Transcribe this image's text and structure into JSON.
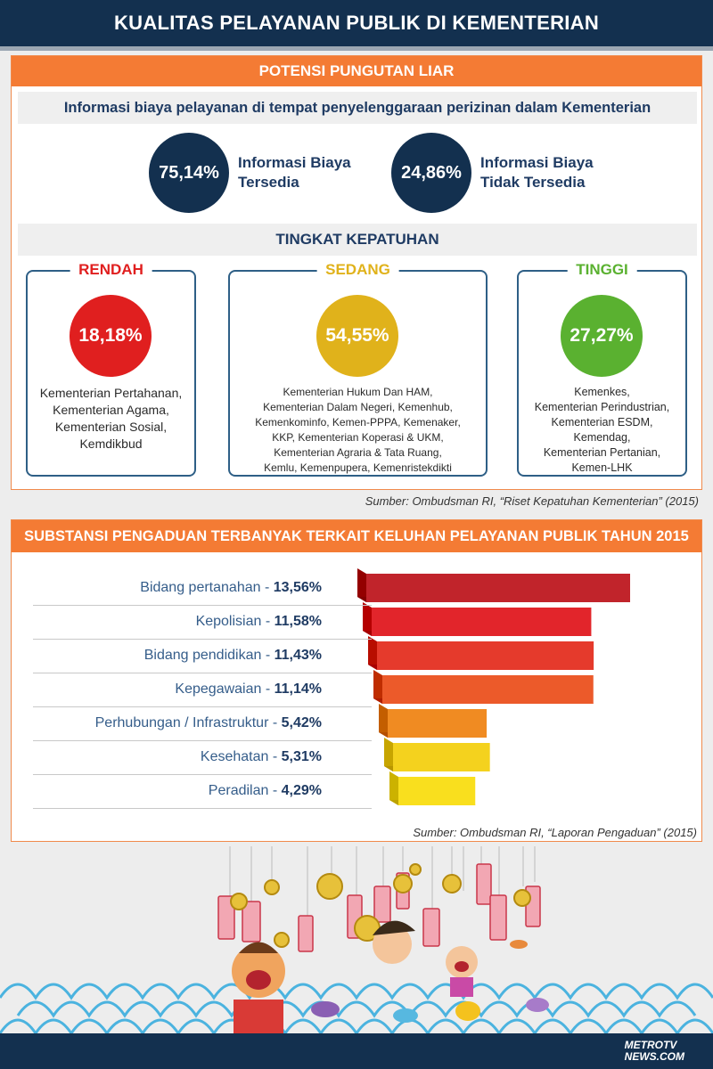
{
  "header": {
    "title": "KUALITAS PELAYANAN PUBLIK DI KEMENTERIAN"
  },
  "section1": {
    "title": "POTENSI PUNGUTAN LIAR",
    "info_heading": "Informasi biaya pelayanan di tempat penyelenggaraan perizinan dalam Kementerian",
    "stats": [
      {
        "value": "75,14%",
        "label_line1": "Informasi Biaya",
        "label_line2": "Tersedia"
      },
      {
        "value": "24,86%",
        "label_line1": "Informasi Biaya",
        "label_line2": "Tidak Tersedia"
      }
    ],
    "compliance_heading": "TINGKAT KEPATUHAN",
    "levels": [
      {
        "name": "RENDAH",
        "value": "18,18%",
        "color": "#e01f1f",
        "ministries": [
          "Kementerian Pertahanan,",
          "Kementerian Agama,",
          "Kementerian Sosial,",
          "Kemdikbud"
        ]
      },
      {
        "name": "SEDANG",
        "value": "54,55%",
        "color": "#e0b21b",
        "ministries": [
          "Kementerian Hukum Dan HAM,",
          "Kementerian Dalam Negeri, Kemenhub,",
          "Kemenkominfo, Kemen-PPPA, Kemenaker,",
          "KKP, Kementerian Koperasi & UKM,",
          "Kementerian Agraria & Tata Ruang,",
          "Kemlu, Kemenpupera, Kemenristekdikti"
        ]
      },
      {
        "name": "TINGGI",
        "value": "27,27%",
        "color": "#5ab130",
        "ministries": [
          "Kemenkes,",
          "Kementerian Perindustrian,",
          "Kementerian ESDM,",
          "Kemendag,",
          "Kementerian Pertanian,",
          "Kemen-LHK"
        ]
      }
    ],
    "source": "Sumber: Ombudsman RI, “Riset Kepatuhan Kementerian” (2015)"
  },
  "section2": {
    "title": "SUBSTANSI PENGADUAN TERBANYAK TERKAIT KELUHAN PELAYANAN PUBLIK TAHUN 2015",
    "source": "Sumber: Ombudsman RI, “Laporan Pengaduan” (2015)"
  },
  "chart_data": {
    "type": "bar",
    "orientation": "horizontal",
    "categories": [
      "Bidang pertanahan",
      "Kepolisian",
      "Bidang pendidikan",
      "Kepegawaian",
      "Perhubungan / Infrastruktur",
      "Kesehatan",
      "Peradilan"
    ],
    "values": [
      13.56,
      11.58,
      11.43,
      11.14,
      5.42,
      5.31,
      4.29
    ],
    "value_labels": [
      "13,56%",
      "11,58%",
      "11,43%",
      "11,14%",
      "5,42%",
      "5,31%",
      "4,29%"
    ],
    "bar_colors": [
      "#c1242b",
      "#e2252b",
      "#e53a2c",
      "#ec5a2a",
      "#f08b22",
      "#f4d21e",
      "#f9df1e"
    ],
    "title": "SUBSTANSI PENGADUAN TERBANYAK TERKAIT KELUHAN PELAYANAN PUBLIK TAHUN 2015",
    "xlabel": "",
    "ylabel": ""
  },
  "footer": {
    "logo_line1": "METROTV",
    "logo_line2": "NEWS.COM"
  },
  "colors": {
    "navy": "#13304f",
    "orange": "#f47b34"
  }
}
